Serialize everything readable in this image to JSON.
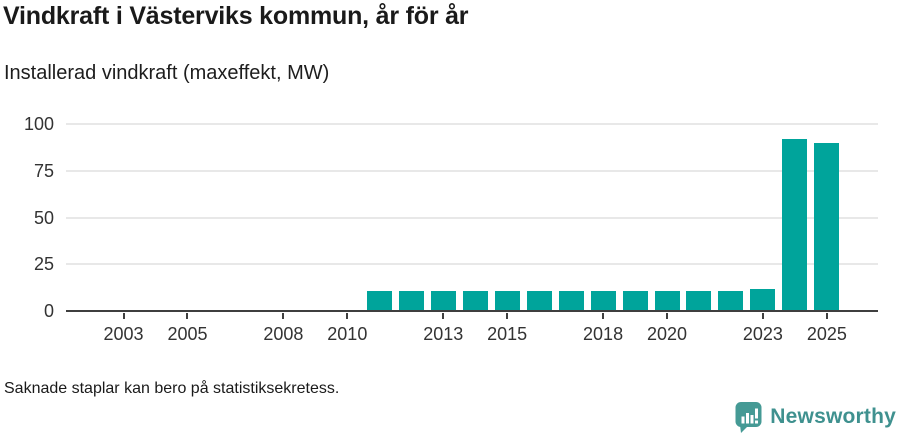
{
  "chart_data": {
    "type": "bar",
    "title": "Vindkraft i Västerviks kommun, år för år",
    "subtitle": "Installerad vindkraft (maxeffekt, MW)",
    "unit": "MW",
    "x": [
      2011,
      2012,
      2013,
      2014,
      2015,
      2016,
      2017,
      2018,
      2019,
      2020,
      2021,
      2022,
      2023,
      2024,
      2025
    ],
    "values": [
      10.5,
      10.5,
      10.5,
      10.5,
      10.5,
      10.5,
      10.5,
      10.5,
      10.5,
      10.5,
      10.5,
      10.5,
      12,
      92,
      90
    ],
    "xlabel": "",
    "ylabel": "Installerad vindkraft (maxeffekt, MW)",
    "ylim": [
      0,
      100
    ],
    "yticks": [
      0,
      25,
      50,
      75,
      100
    ],
    "xticks": [
      2003,
      2005,
      2008,
      2010,
      2013,
      2015,
      2018,
      2020,
      2023,
      2025
    ],
    "x_domain": [
      2001.2,
      2026.6
    ],
    "grid": "horizontal",
    "legend": "none",
    "bar_color": "#00a49b"
  },
  "footer": {
    "note": "Saknade staplar kan bero på statistiksekretess."
  },
  "branding": {
    "name": "Newsworthy",
    "text_color": "#3f918f",
    "icon_color": "#459a95"
  }
}
